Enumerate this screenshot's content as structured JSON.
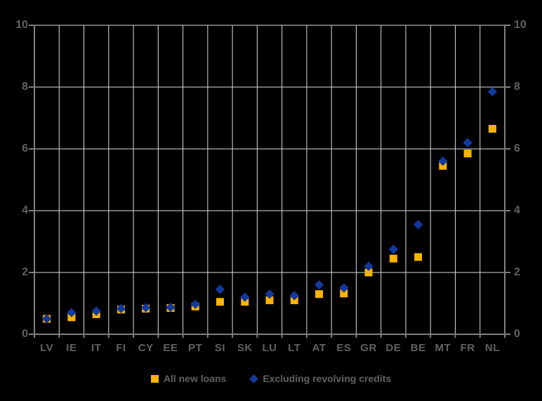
{
  "chart_data": {
    "type": "scatter",
    "title": "",
    "categories": [
      "LV",
      "IE",
      "IT",
      "FI",
      "CY",
      "EE",
      "PT",
      "SI",
      "SK",
      "LU",
      "LT",
      "AT",
      "ES",
      "GR",
      "DE",
      "BE",
      "MT",
      "FR",
      "NL"
    ],
    "series": [
      {
        "name": "All new loans",
        "marker": "square",
        "color": "#FFB400",
        "values": [
          0.5,
          0.55,
          0.65,
          0.8,
          0.83,
          0.85,
          0.9,
          1.05,
          1.05,
          1.1,
          1.1,
          1.3,
          1.32,
          2.0,
          2.45,
          2.5,
          5.45,
          5.85,
          6.65
        ]
      },
      {
        "name": "Excluding revolving credits",
        "marker": "diamond",
        "color": "#12399E",
        "values": [
          0.5,
          0.7,
          0.75,
          0.83,
          0.86,
          0.87,
          0.97,
          1.45,
          1.2,
          1.3,
          1.25,
          1.6,
          1.5,
          2.2,
          2.75,
          3.55,
          5.6,
          6.2,
          7.85
        ]
      }
    ],
    "ylim": [
      0,
      10
    ],
    "y_ticks": [
      "0",
      "2",
      "4",
      "6",
      "8",
      "10"
    ],
    "y_axis_sides": [
      "left",
      "right"
    ],
    "grid": true,
    "legend_position": "bottom",
    "colors": {
      "background": "#000000",
      "gridline": "#DCDCDC",
      "axis": "#7F7F7F",
      "label": "#616161"
    }
  }
}
